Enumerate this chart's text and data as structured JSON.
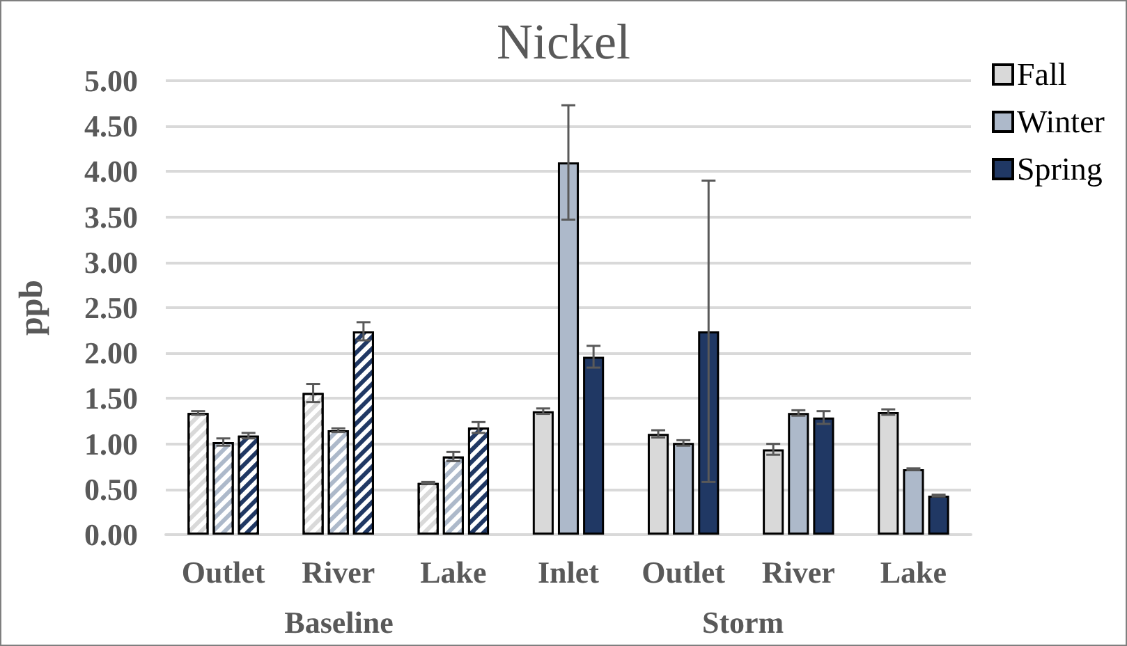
{
  "chart_data": {
    "type": "bar",
    "title": "Nickel",
    "ylabel": "ppb",
    "categories": [
      "Outlet",
      "River",
      "Lake",
      "Inlet",
      "Outlet",
      "River",
      "Lake"
    ],
    "series": [
      {
        "name": "Fall",
        "color": "#d9d9d9",
        "values": [
          1.34,
          1.56,
          0.57,
          1.36,
          1.11,
          0.94,
          1.35
        ],
        "errors": [
          0.02,
          0.1,
          0.01,
          0.03,
          0.04,
          0.06,
          0.03
        ]
      },
      {
        "name": "Winter",
        "color": "#adb9ca",
        "values": [
          1.02,
          1.15,
          0.86,
          4.1,
          1.01,
          1.34,
          0.72
        ],
        "errors": [
          0.04,
          0.02,
          0.05,
          0.63,
          0.03,
          0.03,
          0.01
        ]
      },
      {
        "name": "Spring",
        "color": "#203864",
        "values": [
          1.09,
          2.24,
          1.18,
          1.96,
          2.24,
          1.29,
          0.43
        ],
        "errors": [
          0.03,
          0.1,
          0.06,
          0.12,
          1.66,
          0.07,
          0.01
        ]
      }
    ],
    "ylim": [
      0,
      5
    ],
    "yticks": [
      {
        "value": 0,
        "label": "0.00"
      },
      {
        "value": 0.5,
        "label": "0.50"
      },
      {
        "value": 1,
        "label": "1.00"
      },
      {
        "value": 1.5,
        "label": "1.50"
      },
      {
        "value": 2,
        "label": "2.00"
      },
      {
        "value": 2.5,
        "label": "2.50"
      },
      {
        "value": 3,
        "label": "3.00"
      },
      {
        "value": 3.5,
        "label": "3.50"
      },
      {
        "value": 4,
        "label": "4.00"
      },
      {
        "value": 4.5,
        "label": "4.50"
      },
      {
        "value": 5,
        "label": "5.00"
      }
    ],
    "grid": "y",
    "legend": "top right",
    "annotations": [
      "Baseline",
      "Storm"
    ]
  }
}
